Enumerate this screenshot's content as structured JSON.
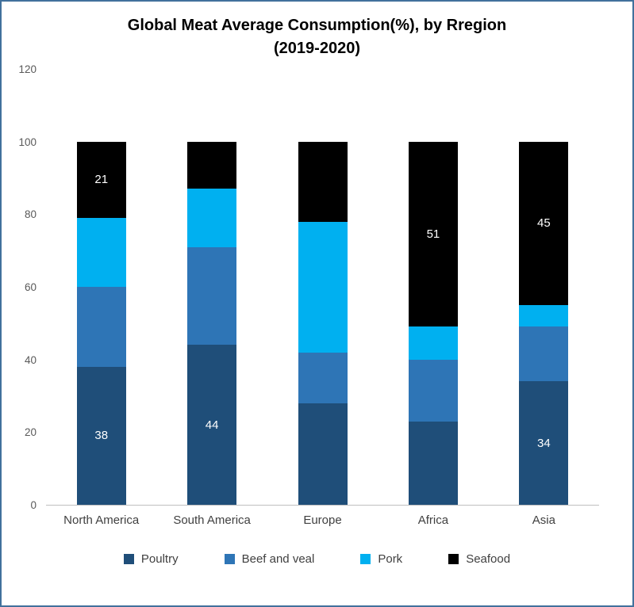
{
  "chart_data": {
    "type": "bar",
    "stacked": true,
    "title": "Global Meat Average Consumption(%), by Rregion (2019-2020)",
    "title_lines": [
      "Global Meat Average Consumption(%), by Rregion",
      "(2019-2020)"
    ],
    "categories": [
      "North America",
      "South America",
      "Europe",
      "Africa",
      "Asia"
    ],
    "series": [
      {
        "name": "Poultry",
        "color": "#1F4E79",
        "values": [
          38,
          44,
          28,
          23,
          34
        ]
      },
      {
        "name": "Beef and veal",
        "color": "#2E75B6",
        "values": [
          22,
          27,
          14,
          17,
          15
        ]
      },
      {
        "name": "Pork",
        "color": "#00B0F0",
        "values": [
          19,
          16,
          36,
          9,
          6
        ]
      },
      {
        "name": "Seafood",
        "color": "#000000",
        "values": [
          21,
          13,
          22,
          51,
          45
        ]
      }
    ],
    "shown_data_labels": [
      {
        "category_index": 0,
        "series_index": 0,
        "text": "38"
      },
      {
        "category_index": 0,
        "series_index": 3,
        "text": "21"
      },
      {
        "category_index": 1,
        "series_index": 0,
        "text": "44"
      },
      {
        "category_index": 3,
        "series_index": 3,
        "text": "51"
      },
      {
        "category_index": 4,
        "series_index": 0,
        "text": "34"
      },
      {
        "category_index": 4,
        "series_index": 3,
        "text": "45"
      }
    ],
    "y_axis": {
      "min": 0,
      "max": 120,
      "ticks": [
        0,
        20,
        40,
        60,
        80,
        100,
        120
      ]
    },
    "legend_position": "bottom",
    "grid": false,
    "colors": {
      "border": "#41719C",
      "axis_line": "#BFBFBF",
      "tick_text": "#595959",
      "label_text": "#404040",
      "data_label_text": "#FFFFFF"
    }
  }
}
